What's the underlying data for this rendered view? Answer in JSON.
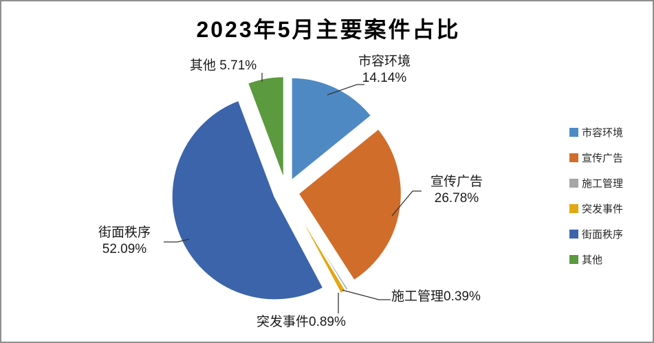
{
  "title": "2023年5月主要案件占比",
  "chart_data": {
    "type": "pie",
    "style": "exploded",
    "title": "2023年5月主要案件占比",
    "legend_position": "right",
    "start_angle_deg": 0,
    "direction": "clockwise",
    "slices": [
      {
        "name": "市容环境",
        "value": 14.14,
        "pct_label": "14.14%",
        "color": "#4E89C4",
        "label_line1": "市容环境",
        "label_line2": "14.14%"
      },
      {
        "name": "宣传广告",
        "value": 26.78,
        "pct_label": "26.78%",
        "color": "#D16D2B",
        "label_line1": "宣传广告",
        "label_line2": "26.78%"
      },
      {
        "name": "施工管理",
        "value": 0.39,
        "pct_label": "0.39%",
        "color": "#A6A6A6",
        "label_line1": "施工管理0.39%",
        "label_line2": ""
      },
      {
        "name": "突发事件",
        "value": 0.89,
        "pct_label": "0.89%",
        "color": "#E2A811",
        "label_line1": "突发事件0.89%",
        "label_line2": ""
      },
      {
        "name": "街面秩序",
        "value": 52.09,
        "pct_label": "52.09%",
        "color": "#3C64AA",
        "label_line1": "街面秩序",
        "label_line2": "52.09%"
      },
      {
        "name": "其他",
        "value": 5.71,
        "pct_label": "5.71%",
        "color": "#5B9A3E",
        "label_line1": "其他 5.71%",
        "label_line2": ""
      }
    ]
  }
}
